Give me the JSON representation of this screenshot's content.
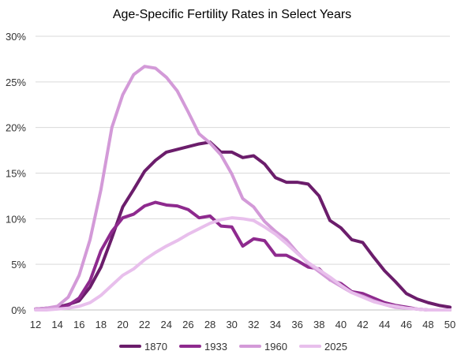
{
  "chart_data": {
    "type": "line",
    "title": "Age-Specific Fertility Rates in Select Years",
    "xlabel": "",
    "ylabel": "",
    "x": [
      12,
      13,
      14,
      15,
      16,
      17,
      18,
      19,
      20,
      21,
      22,
      23,
      24,
      25,
      26,
      27,
      28,
      29,
      30,
      31,
      32,
      33,
      34,
      35,
      36,
      37,
      38,
      39,
      40,
      41,
      42,
      43,
      44,
      45,
      46,
      47,
      48,
      49,
      50
    ],
    "x_ticks": [
      "12",
      "14",
      "16",
      "18",
      "20",
      "22",
      "24",
      "26",
      "28",
      "30",
      "32",
      "34",
      "36",
      "38",
      "40",
      "42",
      "44",
      "46",
      "48",
      "50"
    ],
    "y_ticks": [
      "0%",
      "5%",
      "10%",
      "15%",
      "20%",
      "25%",
      "30%"
    ],
    "ylim": [
      0,
      30
    ],
    "grid": true,
    "legend_position": "bottom",
    "series": [
      {
        "name": "1870",
        "color": "#6b1d6b",
        "values": [
          0.1,
          0.2,
          0.3,
          0.6,
          1.0,
          2.5,
          4.7,
          7.9,
          11.3,
          13.2,
          15.2,
          16.4,
          17.3,
          17.6,
          17.9,
          18.2,
          18.4,
          17.3,
          17.3,
          16.7,
          16.9,
          16.0,
          14.5,
          14.0,
          14.0,
          13.8,
          12.5,
          9.8,
          9.0,
          7.7,
          7.4,
          5.8,
          4.3,
          3.1,
          1.8,
          1.2,
          0.8,
          0.5,
          0.3
        ]
      },
      {
        "name": "1933",
        "color": "#8e2a8e",
        "values": [
          0.1,
          0.1,
          0.2,
          0.5,
          1.3,
          3.2,
          6.5,
          8.6,
          10.1,
          10.5,
          11.4,
          11.8,
          11.5,
          11.4,
          11.0,
          10.1,
          10.3,
          9.2,
          9.1,
          7.0,
          7.8,
          7.6,
          6.0,
          6.0,
          5.4,
          4.7,
          4.5,
          3.3,
          2.9,
          2.0,
          1.8,
          1.3,
          0.8,
          0.5,
          0.3,
          0.1,
          0.0,
          0.0,
          0.0
        ]
      },
      {
        "name": "1960",
        "color": "#d39ad8",
        "values": [
          0.1,
          0.2,
          0.4,
          1.4,
          3.8,
          7.7,
          13.2,
          20.0,
          23.6,
          25.8,
          26.7,
          26.5,
          25.5,
          24.0,
          21.7,
          19.3,
          18.3,
          17.0,
          14.9,
          12.2,
          11.3,
          9.7,
          8.6,
          7.7,
          6.3,
          5.1,
          4.2,
          3.3,
          2.6,
          1.9,
          1.5,
          1.0,
          0.6,
          0.3,
          0.2,
          0.1,
          0.0,
          0.0,
          0.0
        ]
      },
      {
        "name": "2025",
        "color": "#e8bfec",
        "values": [
          0.0,
          0.0,
          0.1,
          0.2,
          0.4,
          0.8,
          1.6,
          2.7,
          3.8,
          4.5,
          5.5,
          6.3,
          7.0,
          7.6,
          8.3,
          8.9,
          9.5,
          9.9,
          10.1,
          10.0,
          9.8,
          9.1,
          8.3,
          7.3,
          6.2,
          5.2,
          4.4,
          3.6,
          2.7,
          1.9,
          1.4,
          0.9,
          0.6,
          0.4,
          0.2,
          0.1,
          0.0,
          0.0,
          0.0
        ]
      }
    ]
  }
}
